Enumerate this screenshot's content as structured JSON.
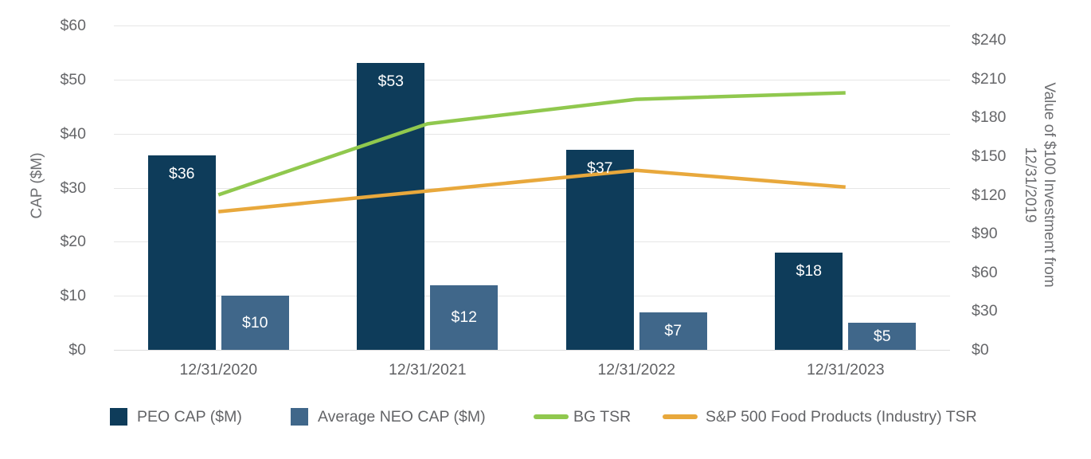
{
  "chart_data": {
    "type": "combo-bar-line",
    "categories": [
      "12/31/2020",
      "12/31/2021",
      "12/31/2022",
      "12/31/2023"
    ],
    "bar_series": [
      {
        "name": "PEO CAP ($M)",
        "color": "#0e3c5a",
        "axis": "left",
        "values": [
          36,
          53,
          37,
          18
        ],
        "labels": [
          "$36",
          "$53",
          "$37",
          "$18"
        ],
        "label_placement": "inside-top"
      },
      {
        "name": "Average NEO CAP ($M)",
        "color": "#40678a",
        "axis": "left",
        "values": [
          10,
          12,
          7,
          5
        ],
        "labels": [
          "$10",
          "$12",
          "$7",
          "$5"
        ],
        "label_placement": "inside-center"
      }
    ],
    "line_series": [
      {
        "name": "BG TSR",
        "color": "#90c84e",
        "axis": "right",
        "values": [
          120,
          175,
          194,
          199
        ]
      },
      {
        "name": "S&P 500 Food Products (Industry) TSR",
        "color": "#e8a83c",
        "axis": "right",
        "values": [
          107,
          123,
          139,
          126
        ]
      }
    ],
    "left_axis": {
      "title": "CAP ($M)",
      "min": 0,
      "max": 60,
      "step": 10,
      "tick_labels": [
        "$0",
        "$10",
        "$20",
        "$30",
        "$40",
        "$50",
        "$60"
      ]
    },
    "right_axis": {
      "title_line1": "Value of $100 Investment from",
      "title_line2": "12/31/2019",
      "min": 0,
      "max": 240,
      "step": 30,
      "tick_labels": [
        "$0",
        "$30",
        "$60",
        "$90",
        "$120",
        "$150",
        "$180",
        "$210",
        "$240"
      ]
    },
    "grid": "horizontal",
    "background": "#ffffff",
    "legend_position": "bottom"
  },
  "legend": {
    "items": [
      {
        "label": "PEO CAP ($M)",
        "swatch": "square",
        "color": "#0e3c5a"
      },
      {
        "label": "Average NEO CAP ($M)",
        "swatch": "square",
        "color": "#40678a"
      },
      {
        "label": "BG TSR",
        "swatch": "line",
        "color": "#90c84e"
      },
      {
        "label": "S&P 500 Food Products (Industry) TSR",
        "swatch": "line",
        "color": "#e8a83c"
      }
    ]
  }
}
